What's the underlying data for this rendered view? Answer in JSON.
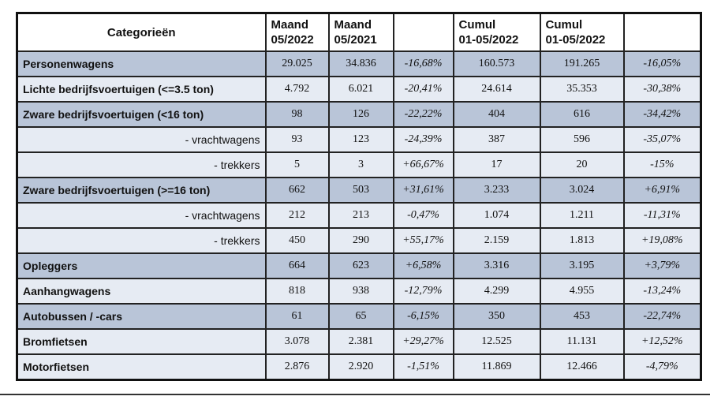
{
  "table": {
    "header": {
      "category": "Categorieën",
      "columns": [
        [
          "Maand",
          "05/2022"
        ],
        [
          "Maand",
          "05/2021"
        ],
        [
          "Cumul",
          "01-05/2022"
        ],
        [
          "Cumul",
          "01-05/2022"
        ]
      ]
    },
    "rows": [
      {
        "label": "Personenwagens",
        "highlight": true,
        "sub": false,
        "values": [
          "29.025",
          "34.836",
          "-16,68%",
          "160.573",
          "191.265",
          "-16,05%"
        ]
      },
      {
        "label": "Lichte bedrijfsvoertuigen (<=3.5 ton)",
        "highlight": false,
        "sub": false,
        "values": [
          "4.792",
          "6.021",
          "-20,41%",
          "24.614",
          "35.353",
          "-30,38%"
        ]
      },
      {
        "label": "Zware bedrijfsvoertuigen (<16 ton)",
        "highlight": true,
        "sub": false,
        "values": [
          "98",
          "126",
          "-22,22%",
          "404",
          "616",
          "-34,42%"
        ]
      },
      {
        "label": "- vrachtwagens",
        "highlight": false,
        "sub": true,
        "values": [
          "93",
          "123",
          "-24,39%",
          "387",
          "596",
          "-35,07%"
        ]
      },
      {
        "label": "- trekkers",
        "highlight": false,
        "sub": true,
        "values": [
          "5",
          "3",
          "+66,67%",
          "17",
          "20",
          "-15%"
        ]
      },
      {
        "label": "Zware bedrijfsvoertuigen (>=16 ton)",
        "highlight": true,
        "sub": false,
        "values": [
          "662",
          "503",
          "+31,61%",
          "3.233",
          "3.024",
          "+6,91%"
        ]
      },
      {
        "label": "- vrachtwagens",
        "highlight": false,
        "sub": true,
        "values": [
          "212",
          "213",
          "-0,47%",
          "1.074",
          "1.211",
          "-11,31%"
        ]
      },
      {
        "label": "- trekkers",
        "highlight": false,
        "sub": true,
        "values": [
          "450",
          "290",
          "+55,17%",
          "2.159",
          "1.813",
          "+19,08%"
        ]
      },
      {
        "label": "Opleggers",
        "highlight": true,
        "sub": false,
        "values": [
          "664",
          "623",
          "+6,58%",
          "3.316",
          "3.195",
          "+3,79%"
        ]
      },
      {
        "label": "Aanhangwagens",
        "highlight": false,
        "sub": false,
        "values": [
          "818",
          "938",
          "-12,79%",
          "4.299",
          "4.955",
          "-13,24%"
        ]
      },
      {
        "label": "Autobussen / -cars",
        "highlight": true,
        "sub": false,
        "values": [
          "61",
          "65",
          "-6,15%",
          "350",
          "453",
          "-22,74%"
        ]
      },
      {
        "label": "Bromfietsen",
        "highlight": false,
        "sub": false,
        "values": [
          "3.078",
          "2.381",
          "+29,27%",
          "12.525",
          "11.131",
          "+12,52%"
        ]
      },
      {
        "label": "Motorfietsen",
        "highlight": false,
        "sub": false,
        "values": [
          "2.876",
          "2.920",
          "-1,51%",
          "11.869",
          "12.466",
          "-4,79%"
        ]
      }
    ]
  }
}
